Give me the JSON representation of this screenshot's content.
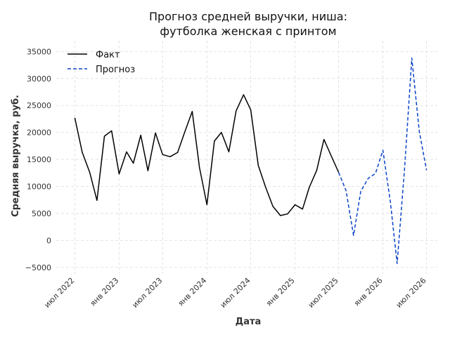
{
  "chart_data": {
    "type": "line",
    "title_lines": [
      "Прогноз средней выручки, ниша:",
      "футболка женская с принтом"
    ],
    "xlabel": "Дата",
    "ylabel": "Средняя выручка, руб.",
    "ylim": [
      -6200,
      37000
    ],
    "y_ticks": [
      -5000,
      0,
      5000,
      10000,
      15000,
      20000,
      25000,
      30000,
      35000
    ],
    "y_tick_labels": [
      "−5000",
      "0",
      "5000",
      "10000",
      "15000",
      "20000",
      "25000",
      "30000",
      "35000"
    ],
    "xlim": [
      "2022-04-15",
      "2026-08-15"
    ],
    "x_ticks": [
      "2022-07-01",
      "2023-01-01",
      "2023-07-01",
      "2024-01-01",
      "2024-07-01",
      "2025-01-01",
      "2025-07-01",
      "2026-01-01",
      "2026-07-01"
    ],
    "x_tick_labels": [
      "июл 2022",
      "янв 2023",
      "июл 2023",
      "янв 2024",
      "июл 2024",
      "янв 2025",
      "июл 2025",
      "янв 2026",
      "июл 2026"
    ],
    "grid": true,
    "legend_position": "top-left",
    "series": [
      {
        "name": "Факт",
        "color": "#000000",
        "style": "solid",
        "x": [
          "2022-07-01",
          "2022-08-01",
          "2022-09-01",
          "2022-10-01",
          "2022-11-01",
          "2022-12-01",
          "2023-01-01",
          "2023-02-01",
          "2023-03-01",
          "2023-04-01",
          "2023-05-01",
          "2023-06-01",
          "2023-07-01",
          "2023-08-01",
          "2023-09-01",
          "2023-10-01",
          "2023-11-01",
          "2023-12-01",
          "2024-01-01",
          "2024-02-01",
          "2024-03-01",
          "2024-04-01",
          "2024-05-01",
          "2024-06-01",
          "2024-07-01",
          "2024-08-01",
          "2024-09-01",
          "2024-10-01",
          "2024-11-01",
          "2024-12-01",
          "2025-01-01",
          "2025-02-01",
          "2025-03-01",
          "2025-04-01",
          "2025-05-01",
          "2025-06-01",
          "2025-07-01"
        ],
        "values": [
          22700,
          16300,
          12600,
          7400,
          19300,
          20300,
          12300,
          16400,
          14300,
          19500,
          12900,
          19900,
          15900,
          15500,
          16300,
          20100,
          23900,
          13500,
          6600,
          18400,
          20000,
          16400,
          24000,
          27000,
          24200,
          13900,
          9800,
          6300,
          4600,
          4900,
          6600,
          5800,
          9800,
          13000,
          18700,
          15600,
          12600
        ]
      },
      {
        "name": "Прогноз",
        "color": "#0b44c8",
        "style": "dashed",
        "x": [
          "2025-07-01",
          "2025-08-01",
          "2025-09-01",
          "2025-10-01",
          "2025-11-01",
          "2025-12-01",
          "2026-01-01",
          "2026-02-01",
          "2026-03-01",
          "2026-04-01",
          "2026-05-01",
          "2026-06-01",
          "2026-07-01"
        ],
        "values": [
          12600,
          9200,
          900,
          9100,
          11500,
          12400,
          16700,
          7100,
          -4300,
          13300,
          33800,
          20200,
          13000
        ]
      }
    ]
  }
}
